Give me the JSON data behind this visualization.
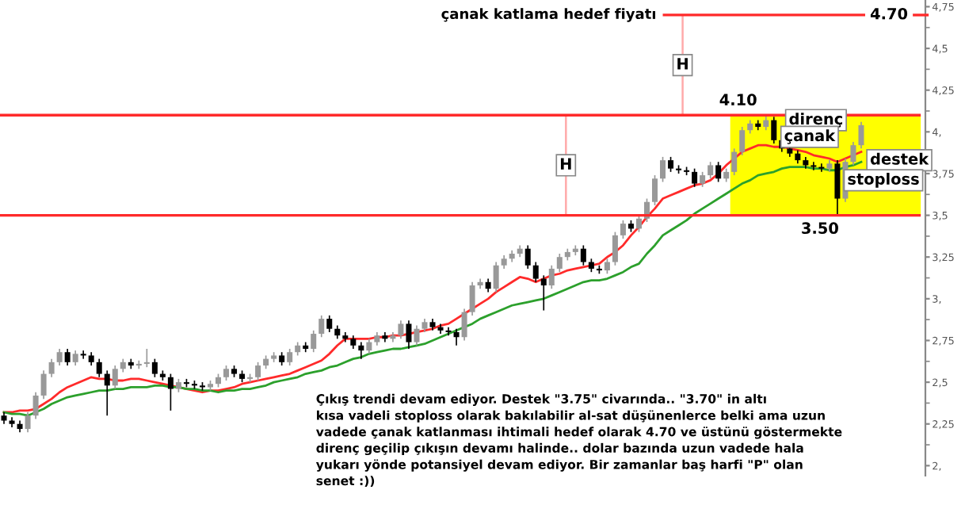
{
  "chart_data": {
    "type": "candlestick",
    "categories": [
      null,
      null,
      null,
      null,
      null,
      null,
      null,
      null,
      null,
      null,
      null,
      null,
      null,
      null,
      null,
      null,
      null,
      null,
      null,
      null,
      null,
      null,
      null,
      null,
      null,
      null,
      null,
      null,
      null,
      null,
      null,
      null,
      null,
      null,
      null,
      null,
      null,
      null,
      null,
      null,
      null,
      null,
      null,
      null,
      null,
      null,
      null,
      null,
      null,
      null,
      null,
      null,
      null,
      null,
      null,
      null,
      null,
      null,
      null,
      null,
      null,
      null,
      null,
      null,
      null,
      null,
      null,
      null,
      null,
      null,
      null,
      null,
      null,
      null,
      null,
      null,
      null,
      null,
      null,
      null,
      null,
      null,
      null,
      null,
      null,
      null,
      null,
      null,
      null,
      null,
      null,
      null,
      null,
      null,
      null,
      null,
      null,
      null,
      null,
      null,
      null,
      null,
      null,
      null,
      null,
      null,
      null,
      null,
      null
    ],
    "ylim": [
      1.94,
      4.79
    ],
    "yticks": [
      {
        "value": 4.75,
        "label": "4,75"
      },
      {
        "value": 4.5,
        "label": "4,5"
      },
      {
        "value": 4.25,
        "label": "4,25"
      },
      {
        "value": 4,
        "label": "4,"
      },
      {
        "value": 3.75,
        "label": "3,75"
      },
      {
        "value": 3.5,
        "label": "3,5"
      },
      {
        "value": 3.25,
        "label": "3,25"
      },
      {
        "value": 3,
        "label": "3,"
      },
      {
        "value": 2.75,
        "label": "2,75"
      },
      {
        "value": 2.5,
        "label": "2,5"
      },
      {
        "value": 2.25,
        "label": "2,25"
      },
      {
        "value": 2,
        "label": "2,"
      }
    ],
    "tick_labels": "y",
    "series": [
      {
        "colors": [
          "#000000",
          "#000000",
          "#000000",
          "#999999",
          "#999999",
          "#999999",
          "#999999",
          "#999999",
          "#000000",
          "#999999",
          "#000000",
          "#000000",
          "#000000",
          "#000000",
          "#999999",
          "#999999",
          "#000000",
          "#999999",
          "#999999",
          "#000000",
          "#000000",
          "#000000",
          "#999999",
          "#000000",
          "#000000",
          "#000000",
          "#999999",
          "#999999",
          "#999999",
          "#000000",
          "#000000",
          "#999999",
          "#999999",
          "#999999",
          "#999999",
          "#000000",
          "#999999",
          "#999999",
          "#000000",
          "#999999",
          "#999999",
          "#000000",
          "#000000",
          "#000000",
          "#000000",
          "#000000",
          "#999999",
          "#999999",
          "#000000",
          "#999999",
          "#999999",
          "#000000",
          "#999999",
          "#999999",
          "#000000",
          "#000000",
          "#000000",
          "#000000",
          "#999999",
          "#999999",
          "#999999",
          "#000000",
          "#999999",
          "#999999",
          "#999999",
          "#999999",
          "#000000",
          "#000000",
          "#000000",
          "#999999",
          "#999999",
          "#999999",
          "#999999",
          "#000000",
          "#000000",
          "#000000",
          "#999999",
          "#999999",
          "#999999",
          "#000000",
          "#999999",
          "#999999",
          "#999999",
          "#999999",
          "#000000",
          "#000000",
          "#000000",
          "#000000",
          "#999999",
          "#999999",
          "#000000",
          "#999999",
          "#999999",
          "#999999",
          "#999999",
          "#000000",
          "#999999",
          "#000000",
          "#000000",
          "#000000",
          "#000000",
          "#000000",
          "#000000",
          "#000000",
          "#999999",
          "#000000",
          "#999999",
          "#999999",
          "#999999"
        ],
        "ohlc": [
          [
            2.3,
            2.32,
            2.25,
            2.27
          ],
          [
            2.27,
            2.29,
            2.23,
            2.25
          ],
          [
            2.25,
            2.27,
            2.2,
            2.22
          ],
          [
            2.22,
            2.32,
            2.2,
            2.3
          ],
          [
            2.3,
            2.44,
            2.28,
            2.42
          ],
          [
            2.42,
            2.57,
            2.4,
            2.55
          ],
          [
            2.55,
            2.64,
            2.53,
            2.62
          ],
          [
            2.62,
            2.7,
            2.6,
            2.68
          ],
          [
            2.68,
            2.7,
            2.6,
            2.62
          ],
          [
            2.62,
            2.69,
            2.6,
            2.67
          ],
          [
            2.67,
            2.69,
            2.64,
            2.66
          ],
          [
            2.66,
            2.68,
            2.6,
            2.62
          ],
          [
            2.62,
            2.64,
            2.53,
            2.55
          ],
          [
            2.55,
            2.57,
            2.3,
            2.48
          ],
          [
            2.48,
            2.6,
            2.46,
            2.58
          ],
          [
            2.58,
            2.64,
            2.56,
            2.62
          ],
          [
            2.62,
            2.64,
            2.58,
            2.6
          ],
          [
            2.6,
            2.63,
            2.58,
            2.61
          ],
          [
            2.61,
            2.7,
            2.59,
            2.62
          ],
          [
            2.62,
            2.64,
            2.53,
            2.55
          ],
          [
            2.55,
            2.57,
            2.51,
            2.53
          ],
          [
            2.53,
            2.55,
            2.33,
            2.46
          ],
          [
            2.46,
            2.52,
            2.44,
            2.5
          ],
          [
            2.5,
            2.52,
            2.47,
            2.49
          ],
          [
            2.49,
            2.51,
            2.46,
            2.48
          ],
          [
            2.48,
            2.5,
            2.45,
            2.47
          ],
          [
            2.47,
            2.51,
            2.45,
            2.49
          ],
          [
            2.49,
            2.55,
            2.47,
            2.53
          ],
          [
            2.53,
            2.6,
            2.51,
            2.58
          ],
          [
            2.58,
            2.6,
            2.53,
            2.55
          ],
          [
            2.55,
            2.57,
            2.5,
            2.52
          ],
          [
            2.52,
            2.55,
            2.5,
            2.53
          ],
          [
            2.53,
            2.62,
            2.51,
            2.6
          ],
          [
            2.6,
            2.66,
            2.58,
            2.64
          ],
          [
            2.64,
            2.68,
            2.62,
            2.66
          ],
          [
            2.66,
            2.68,
            2.6,
            2.62
          ],
          [
            2.62,
            2.7,
            2.6,
            2.68
          ],
          [
            2.68,
            2.74,
            2.66,
            2.72
          ],
          [
            2.72,
            2.74,
            2.68,
            2.7
          ],
          [
            2.7,
            2.81,
            2.68,
            2.79
          ],
          [
            2.79,
            2.9,
            2.77,
            2.88
          ],
          [
            2.88,
            2.9,
            2.8,
            2.82
          ],
          [
            2.82,
            2.84,
            2.76,
            2.78
          ],
          [
            2.78,
            2.8,
            2.74,
            2.76
          ],
          [
            2.76,
            2.78,
            2.7,
            2.72
          ],
          [
            2.72,
            2.74,
            2.64,
            2.69
          ],
          [
            2.69,
            2.76,
            2.67,
            2.74
          ],
          [
            2.74,
            2.8,
            2.72,
            2.78
          ],
          [
            2.78,
            2.8,
            2.74,
            2.76
          ],
          [
            2.76,
            2.8,
            2.74,
            2.78
          ],
          [
            2.78,
            2.87,
            2.76,
            2.85
          ],
          [
            2.85,
            2.87,
            2.7,
            2.74
          ],
          [
            2.74,
            2.84,
            2.72,
            2.82
          ],
          [
            2.82,
            2.88,
            2.8,
            2.86
          ],
          [
            2.86,
            2.88,
            2.81,
            2.83
          ],
          [
            2.83,
            2.85,
            2.79,
            2.81
          ],
          [
            2.81,
            2.83,
            2.78,
            2.8
          ],
          [
            2.8,
            2.82,
            2.72,
            2.77
          ],
          [
            2.77,
            2.94,
            2.75,
            2.92
          ],
          [
            2.92,
            3.1,
            2.9,
            3.08
          ],
          [
            3.08,
            3.12,
            3.06,
            3.1
          ],
          [
            3.1,
            3.12,
            3.04,
            3.06
          ],
          [
            3.06,
            3.22,
            3.04,
            3.2
          ],
          [
            3.2,
            3.26,
            3.18,
            3.24
          ],
          [
            3.24,
            3.29,
            3.22,
            3.27
          ],
          [
            3.27,
            3.32,
            3.25,
            3.3
          ],
          [
            3.3,
            3.32,
            3.18,
            3.2
          ],
          [
            3.2,
            3.22,
            3.1,
            3.12
          ],
          [
            3.12,
            3.14,
            2.93,
            3.08
          ],
          [
            3.08,
            3.2,
            3.06,
            3.18
          ],
          [
            3.18,
            3.27,
            3.16,
            3.25
          ],
          [
            3.25,
            3.3,
            3.23,
            3.28
          ],
          [
            3.28,
            3.32,
            3.26,
            3.3
          ],
          [
            3.3,
            3.32,
            3.2,
            3.22
          ],
          [
            3.22,
            3.24,
            3.16,
            3.18
          ],
          [
            3.18,
            3.2,
            3.15,
            3.17
          ],
          [
            3.17,
            3.24,
            3.15,
            3.22
          ],
          [
            3.22,
            3.4,
            3.2,
            3.38
          ],
          [
            3.38,
            3.47,
            3.36,
            3.45
          ],
          [
            3.45,
            3.47,
            3.4,
            3.42
          ],
          [
            3.42,
            3.5,
            3.4,
            3.48
          ],
          [
            3.48,
            3.6,
            3.46,
            3.58
          ],
          [
            3.58,
            3.74,
            3.56,
            3.72
          ],
          [
            3.72,
            3.85,
            3.7,
            3.83
          ],
          [
            3.83,
            3.85,
            3.76,
            3.78
          ],
          [
            3.78,
            3.8,
            3.75,
            3.77
          ],
          [
            3.77,
            3.79,
            3.74,
            3.76
          ],
          [
            3.76,
            3.78,
            3.67,
            3.69
          ],
          [
            3.69,
            3.76,
            3.67,
            3.74
          ],
          [
            3.74,
            3.82,
            3.72,
            3.8
          ],
          [
            3.8,
            3.82,
            3.7,
            3.72
          ],
          [
            3.72,
            3.78,
            3.7,
            3.76
          ],
          [
            3.76,
            3.9,
            3.74,
            3.88
          ],
          [
            3.88,
            4.03,
            3.86,
            4.01
          ],
          [
            4.01,
            4.07,
            3.99,
            4.05
          ],
          [
            4.05,
            4.07,
            4.01,
            4.03
          ],
          [
            4.03,
            4.1,
            4.01,
            4.07
          ],
          [
            4.07,
            4.09,
            3.93,
            3.95
          ],
          [
            3.95,
            3.97,
            3.88,
            3.9
          ],
          [
            3.9,
            3.92,
            3.85,
            3.87
          ],
          [
            3.87,
            3.89,
            3.81,
            3.83
          ],
          [
            3.83,
            3.85,
            3.78,
            3.8
          ],
          [
            3.8,
            3.82,
            3.77,
            3.79
          ],
          [
            3.79,
            3.81,
            3.76,
            3.78
          ],
          [
            3.78,
            3.83,
            3.76,
            3.81
          ],
          [
            3.81,
            3.83,
            3.5,
            3.6
          ],
          [
            3.6,
            3.84,
            3.58,
            3.82
          ],
          [
            3.82,
            3.94,
            3.8,
            3.92
          ],
          [
            3.92,
            4.06,
            3.9,
            4.04
          ]
        ]
      },
      {
        "type": "line",
        "color": "#ff2a2a",
        "values": [
          2.32,
          2.32,
          2.33,
          2.33,
          2.34,
          2.37,
          2.4,
          2.44,
          2.47,
          2.49,
          2.51,
          2.53,
          2.52,
          2.52,
          2.51,
          2.51,
          2.52,
          2.52,
          2.51,
          2.5,
          2.49,
          2.48,
          2.47,
          2.46,
          2.45,
          2.44,
          2.45,
          2.45,
          2.46,
          2.47,
          2.49,
          2.5,
          2.51,
          2.52,
          2.53,
          2.54,
          2.55,
          2.57,
          2.59,
          2.61,
          2.63,
          2.67,
          2.72,
          2.76,
          2.76,
          2.76,
          2.76,
          2.77,
          2.77,
          2.78,
          2.78,
          2.79,
          2.8,
          2.81,
          2.82,
          2.84,
          2.85,
          2.88,
          2.91,
          2.94,
          2.97,
          3.0,
          3.04,
          3.07,
          3.1,
          3.13,
          3.12,
          3.1,
          3.12,
          3.14,
          3.15,
          3.17,
          3.18,
          3.19,
          3.2,
          3.21,
          3.25,
          3.28,
          3.32,
          3.38,
          3.43,
          3.49,
          3.54,
          3.6,
          3.62,
          3.64,
          3.66,
          3.68,
          3.69,
          3.71,
          3.75,
          3.8,
          3.84,
          3.88,
          3.9,
          3.92,
          3.92,
          3.91,
          3.91,
          3.9,
          3.89,
          3.88,
          3.86,
          3.85,
          3.84,
          3.82,
          3.84,
          3.86,
          3.88
        ]
      },
      {
        "type": "line",
        "color": "#2ca02c",
        "values": [
          2.32,
          2.31,
          2.31,
          2.3,
          2.32,
          2.34,
          2.37,
          2.39,
          2.41,
          2.42,
          2.43,
          2.44,
          2.45,
          2.45,
          2.46,
          2.46,
          2.47,
          2.47,
          2.47,
          2.48,
          2.48,
          2.47,
          2.47,
          2.46,
          2.46,
          2.45,
          2.45,
          2.44,
          2.45,
          2.45,
          2.46,
          2.46,
          2.47,
          2.48,
          2.5,
          2.51,
          2.52,
          2.53,
          2.55,
          2.56,
          2.57,
          2.59,
          2.6,
          2.62,
          2.64,
          2.65,
          2.67,
          2.68,
          2.69,
          2.7,
          2.7,
          2.71,
          2.72,
          2.73,
          2.75,
          2.77,
          2.79,
          2.81,
          2.83,
          2.85,
          2.88,
          2.9,
          2.92,
          2.94,
          2.96,
          2.97,
          2.98,
          2.99,
          3.0,
          3.02,
          3.04,
          3.06,
          3.08,
          3.1,
          3.11,
          3.11,
          3.12,
          3.14,
          3.16,
          3.19,
          3.21,
          3.27,
          3.32,
          3.38,
          3.41,
          3.44,
          3.47,
          3.51,
          3.54,
          3.57,
          3.6,
          3.63,
          3.66,
          3.69,
          3.71,
          3.74,
          3.75,
          3.76,
          3.78,
          3.79,
          3.79,
          3.79,
          3.78,
          3.78,
          3.77,
          3.77,
          3.79,
          3.8,
          3.82
        ]
      }
    ],
    "ref_lines": [
      {
        "axis": "y",
        "value": 4.7,
        "label": "4.70",
        "color": "#ff2a2a"
      },
      {
        "axis": "y",
        "value": 4.1,
        "label": "4.10",
        "color": "#ff2a2a"
      },
      {
        "axis": "y",
        "value": 3.5,
        "label": "3.50",
        "color": "#ff2a2a"
      }
    ],
    "bands": [
      {
        "axis": "y",
        "from": 3.5,
        "to": 4.1,
        "color": "#ffff00"
      }
    ],
    "annotations": [
      "çanak katlama hedef fiyatı",
      "H",
      "H",
      "direnç",
      "çanak",
      "destek",
      "stoploss",
      "Çıkış trendi devam ediyor. Destek \"3.75\" civarında.. \"3.70\" in altı\nkısa vadeli stoploss olarak bakılabilir al-sat düşünenlerce belki ama uzun\nvadede çanak katlanması ihtimali hedef olarak 4.70 ve üstünü göstermekte\ndirenç geçilip çıkışın devamı halinde.. dolar bazında uzun vadede hala\nyukarı yönde potansiyel devam ediyor. Bir zamanlar baş harfi \"P\" olan\nsenet :))"
    ]
  }
}
